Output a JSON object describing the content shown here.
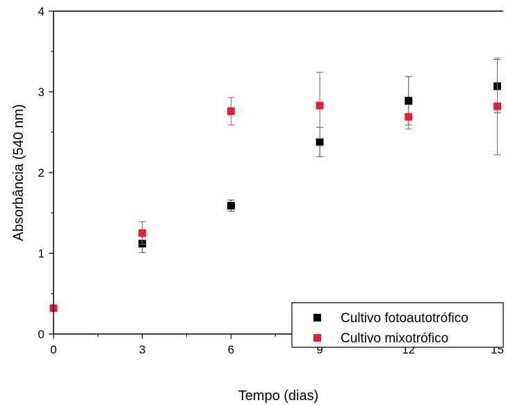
{
  "chart_data": {
    "type": "scatter",
    "title": "",
    "xlabel": "Tempo (dias)",
    "ylabel": "Absorbância (540 nm)",
    "xlim": [
      0,
      15.2
    ],
    "ylim": [
      0,
      4
    ],
    "xticks": [
      0,
      3,
      6,
      9,
      12,
      15
    ],
    "yticks": [
      0,
      1,
      2,
      3,
      4
    ],
    "grid": false,
    "legend_position": "bottom-right",
    "series": [
      {
        "name": "Cultivo fotoautotrófico",
        "color": "#000000",
        "marker": "square",
        "x": [
          3,
          6,
          9,
          12,
          15
        ],
        "y": [
          1.12,
          1.59,
          2.38,
          2.89,
          3.07
        ],
        "err": [
          0.11,
          0.07,
          0.18,
          0.3,
          0.33
        ]
      },
      {
        "name": "Cultivo mixotrófico",
        "color": "#e8202a",
        "marker": "square",
        "x": [
          0,
          3,
          6,
          9,
          12,
          15
        ],
        "y": [
          0.32,
          1.25,
          2.76,
          2.83,
          2.69,
          2.82
        ],
        "err": [
          0.0,
          0.14,
          0.17,
          0.41,
          0.15,
          0.6
        ]
      }
    ]
  }
}
